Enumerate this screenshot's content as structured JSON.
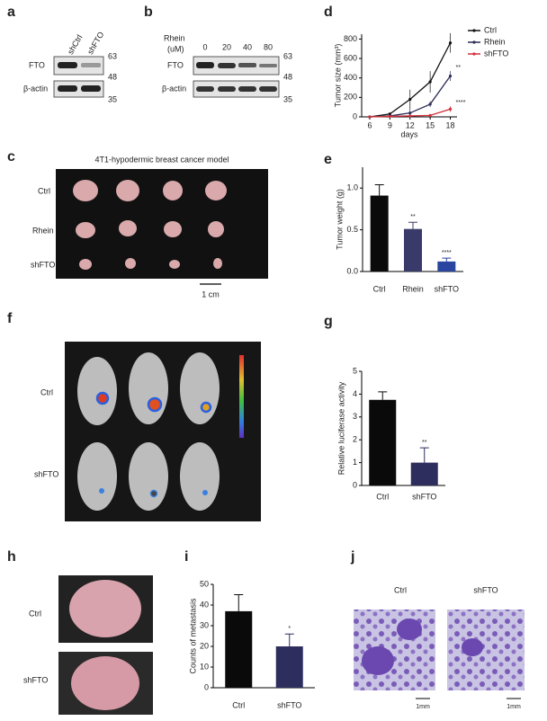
{
  "figure": {
    "letters": [
      "a",
      "b",
      "c",
      "d",
      "e",
      "f",
      "g",
      "h",
      "i",
      "j"
    ],
    "a": {
      "lanes": [
        "shCtrl",
        "shFTO"
      ],
      "rows": [
        "FTO",
        "β-actin"
      ],
      "mw": [
        "63",
        "48",
        "35"
      ]
    },
    "b": {
      "treatment": "Rhein",
      "unit": "(uM)",
      "doses": [
        "0",
        "20",
        "40",
        "80"
      ],
      "rows": [
        "FTO",
        "β-actin"
      ],
      "mw": [
        "63",
        "48",
        "35"
      ]
    },
    "c": {
      "title": "4T1-hypodermic breast cancer model",
      "rows": [
        "Ctrl",
        "Rhein",
        "shFTO"
      ],
      "scale": "1 cm"
    },
    "f": {
      "rows": [
        "Ctrl",
        "shFTO"
      ]
    },
    "h": {
      "rows": [
        "Ctrl",
        "shFTO"
      ]
    },
    "j": {
      "columns": [
        "Ctrl",
        "shFTO"
      ],
      "scales": [
        "1mm",
        "1mm"
      ]
    }
  },
  "chart_data": [
    {
      "type": "line",
      "xlabel": "days",
      "ylabel": "Tumor size (mm³)",
      "x": [
        6,
        9,
        12,
        15,
        18
      ],
      "xlim": [
        4.8,
        19
      ],
      "xticks": [
        6,
        9,
        12,
        15,
        18
      ],
      "ylim": [
        0,
        850
      ],
      "yticks": [
        0,
        200,
        400,
        600,
        800
      ],
      "series": [
        {
          "name": "Ctrl",
          "color": "#111111",
          "values": [
            0,
            30,
            180,
            360,
            760
          ],
          "errors": [
            0,
            10,
            100,
            110,
            100
          ]
        },
        {
          "name": "Rhein",
          "color": "#2b2b55",
          "values": [
            0,
            10,
            40,
            130,
            420
          ],
          "errors": [
            0,
            5,
            40,
            30,
            50
          ]
        },
        {
          "name": "shFTO",
          "color": "#d0303a",
          "values": [
            0,
            5,
            10,
            15,
            80
          ],
          "errors": [
            0,
            0,
            10,
            10,
            30
          ]
        }
      ],
      "annotations": [
        "**",
        "****"
      ]
    },
    {
      "type": "bar",
      "ylabel": "Tumor weight (g)",
      "categories": [
        "Ctrl",
        "Rhein",
        "shFTO"
      ],
      "values": [
        0.91,
        0.51,
        0.12
      ],
      "errors": [
        0.13,
        0.08,
        0.04
      ],
      "colors": [
        "#0a0a0a",
        "#3a3a6a",
        "#2a45a0"
      ],
      "ylim": [
        0,
        1.25
      ],
      "yticks": [
        {
          "value": 0,
          "label": "0.0"
        },
        {
          "value": 0.5,
          "label": "0.5"
        },
        {
          "value": 1,
          "label": "1.0"
        }
      ],
      "annotations": [
        "**",
        "****"
      ]
    },
    {
      "type": "bar",
      "ylabel": "Relative luciferase activity",
      "categories": [
        "Ctrl",
        "shFTO"
      ],
      "values": [
        3.75,
        1.0
      ],
      "errors": [
        0.35,
        0.65
      ],
      "colors": [
        "#0a0a0a",
        "#2e2e5e"
      ],
      "ylim": [
        0,
        5
      ],
      "yticks": [
        0,
        1,
        2,
        3,
        4,
        5
      ],
      "annotations": [
        "**"
      ]
    },
    {
      "type": "bar",
      "ylabel": "Counts of metastasis",
      "categories": [
        "Ctrl",
        "shFTO"
      ],
      "values": [
        37,
        20
      ],
      "errors": [
        8,
        6
      ],
      "colors": [
        "#0a0a0a",
        "#2e2e5e"
      ],
      "ylim": [
        0,
        50
      ],
      "yticks": [
        0,
        10,
        20,
        30,
        40,
        50
      ],
      "annotations": [
        "*"
      ]
    }
  ]
}
